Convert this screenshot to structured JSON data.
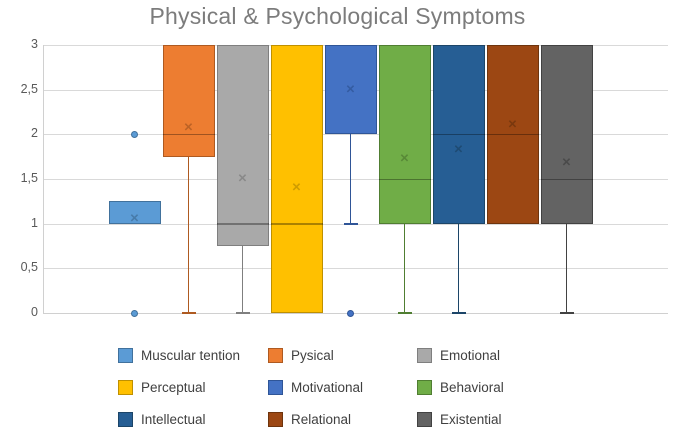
{
  "chart_data": {
    "type": "box",
    "title": "Physical & Psychological Symptoms",
    "legend_position": "bottom",
    "legend_columns": 3,
    "grid": true,
    "y_axis": {
      "min": 0,
      "max": 3,
      "tick_step": 0.5,
      "tick_labels": [
        "0",
        "0,5",
        "1",
        "1,5",
        "2",
        "2,5",
        "3"
      ],
      "decimal_separator": "comma"
    },
    "series": [
      {
        "name": "Muscular tention",
        "color": "#5B9BD5",
        "border_color": "#41719C",
        "pattern": false,
        "q1": 1,
        "median": 1,
        "q3": 1.25,
        "mean": 1.05,
        "whisker_min": null,
        "outliers": [
          2,
          0
        ]
      },
      {
        "name": "Pysical",
        "color": "#ED7D31",
        "border_color": "#AE5A21",
        "pattern": false,
        "q1": 1.75,
        "median": 2,
        "q3": 3,
        "mean": 2.07,
        "whisker_min": 0,
        "outliers": []
      },
      {
        "name": "Emotional",
        "color": "#A9A9A9",
        "border_color": "#7F7F7F",
        "pattern": true,
        "q1": 0.75,
        "median": 1,
        "q3": 3,
        "mean": 1.5,
        "whisker_min": 0,
        "outliers": []
      },
      {
        "name": "Perceptual",
        "color": "#FFC000",
        "border_color": "#BF9000",
        "pattern": false,
        "q1": 0,
        "median": 1,
        "q3": 3,
        "mean": 1.4,
        "whisker_min": null,
        "outliers": []
      },
      {
        "name": "Motivational",
        "color": "#4472C4",
        "border_color": "#2F5597",
        "pattern": false,
        "q1": 2,
        "median": 2,
        "q3": 3,
        "mean": 2.5,
        "whisker_min": 1,
        "outliers": [
          0
        ]
      },
      {
        "name": "Behavioral",
        "color": "#70AD47",
        "border_color": "#507E32",
        "pattern": false,
        "q1": 1,
        "median": 1.5,
        "q3": 3,
        "mean": 1.72,
        "whisker_min": 0,
        "outliers": []
      },
      {
        "name": "Intellectual",
        "color": "#265E94",
        "border_color": "#1C4568",
        "pattern": false,
        "q1": 1,
        "median": 2,
        "q3": 3,
        "mean": 1.83,
        "whisker_min": 0,
        "outliers": []
      },
      {
        "name": "Relational",
        "color": "#9C4713",
        "border_color": "#6E340D",
        "pattern": false,
        "q1": 1,
        "median": 2,
        "q3": 3,
        "mean": 2.1,
        "whisker_min": null,
        "outliers": []
      },
      {
        "name": "Existential",
        "color": "#636363",
        "border_color": "#424242",
        "pattern": true,
        "q1": 1,
        "median": 1.5,
        "q3": 3,
        "mean": 1.68,
        "whisker_min": 0,
        "outliers": []
      }
    ]
  }
}
